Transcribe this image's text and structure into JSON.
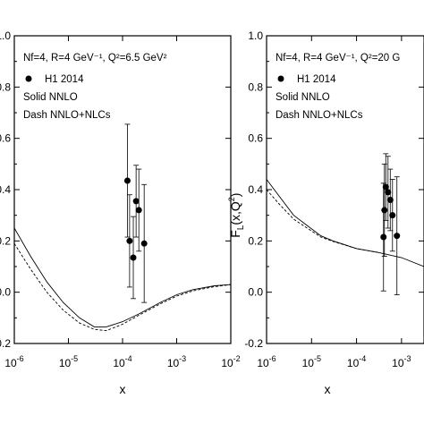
{
  "chart_data": [
    {
      "type": "scatter",
      "annotation": {
        "params": "Nf=4, R=4 GeV⁻¹, Q²=6.5 GeV²",
        "legend_marker": "H1 2014",
        "line1": "Solid NNLO",
        "line2": "Dash NNLO+NLCs"
      },
      "xlabel": "x",
      "ylabel": "",
      "xscale": "log",
      "xlim": [
        1e-06,
        0.01
      ],
      "ylim": [
        -0.2,
        1.0
      ],
      "xticks": [
        "10-6",
        "10-5",
        "10-4",
        "10-3",
        "10-2"
      ],
      "yticks": [
        "-0.2",
        "0.0",
        "0.2",
        "0.4",
        "0.6",
        "0.8",
        "1.0"
      ],
      "series": [
        {
          "style": "solid",
          "x": [
            1e-06,
            2e-06,
            4e-06,
            8e-06,
            1.6e-05,
            3e-05,
            5e-05,
            0.0001,
            0.0002,
            0.0005,
            0.001,
            0.002,
            0.005,
            0.01
          ],
          "y": [
            0.25,
            0.14,
            0.04,
            -0.04,
            -0.1,
            -0.135,
            -0.135,
            -0.115,
            -0.085,
            -0.04,
            -0.01,
            0.01,
            0.025,
            0.03
          ]
        },
        {
          "style": "dashed",
          "x": [
            1e-06,
            2e-06,
            4e-06,
            8e-06,
            1.6e-05,
            3e-05,
            5e-05,
            0.0001,
            0.0002,
            0.0005,
            0.001,
            0.002,
            0.005,
            0.01
          ],
          "y": [
            0.19,
            0.09,
            0.0,
            -0.07,
            -0.12,
            -0.145,
            -0.15,
            -0.125,
            -0.09,
            -0.045,
            -0.015,
            0.005,
            0.022,
            0.03
          ]
        },
        {
          "name": "H1 2014",
          "style": "points",
          "x": [
            0.000123,
            0.000135,
            0.000158,
            0.000178,
            0.0002,
            0.000251
          ],
          "y": [
            0.435,
            0.2,
            0.135,
            0.355,
            0.32,
            0.19
          ],
          "err": [
            0.22,
            0.18,
            0.16,
            0.14,
            0.16,
            0.23
          ]
        }
      ]
    },
    {
      "type": "scatter",
      "annotation": {
        "params": "Nf=4, R=4 GeV⁻¹, Q²=20 G",
        "legend_marker": "H1 2014",
        "line1": "Solid NNLO",
        "line2": "Dash NNLO+NLCs"
      },
      "xlabel": "x",
      "ylabel": "FL(x,Q²)",
      "xscale": "log",
      "xlim": [
        1e-06,
        0.00316
      ],
      "ylim": [
        -0.2,
        1.0
      ],
      "xticks": [
        "10-6",
        "10-5",
        "10-4",
        "10-3"
      ],
      "yticks": [
        "-0.2",
        "0.0",
        "0.2",
        "0.4",
        "0.6",
        "0.8",
        "1.0"
      ],
      "series": [
        {
          "style": "solid",
          "x": [
            1e-06,
            2e-06,
            4e-06,
            8e-06,
            1.6e-05,
            3e-05,
            0.0001,
            0.0003,
            0.001,
            0.00316
          ],
          "y": [
            0.44,
            0.37,
            0.3,
            0.26,
            0.22,
            0.2,
            0.17,
            0.155,
            0.135,
            0.1
          ]
        },
        {
          "style": "dashed",
          "x": [
            1e-06,
            2e-06,
            4e-06,
            8e-06,
            1.6e-05,
            3e-05,
            0.0001,
            0.0003
          ],
          "y": [
            0.4,
            0.34,
            0.285,
            0.25,
            0.215,
            0.198,
            0.17,
            0.155
          ]
        },
        {
          "name": "H1 2014",
          "style": "points",
          "x": [
            0.000398,
            0.000417,
            0.000447,
            0.000501,
            0.000562,
            0.00063,
            0.00079
          ],
          "y": [
            0.215,
            0.32,
            0.41,
            0.39,
            0.36,
            0.3,
            0.22
          ],
          "err": [
            0.21,
            0.18,
            0.13,
            0.14,
            0.12,
            0.14,
            0.23
          ]
        }
      ]
    }
  ]
}
